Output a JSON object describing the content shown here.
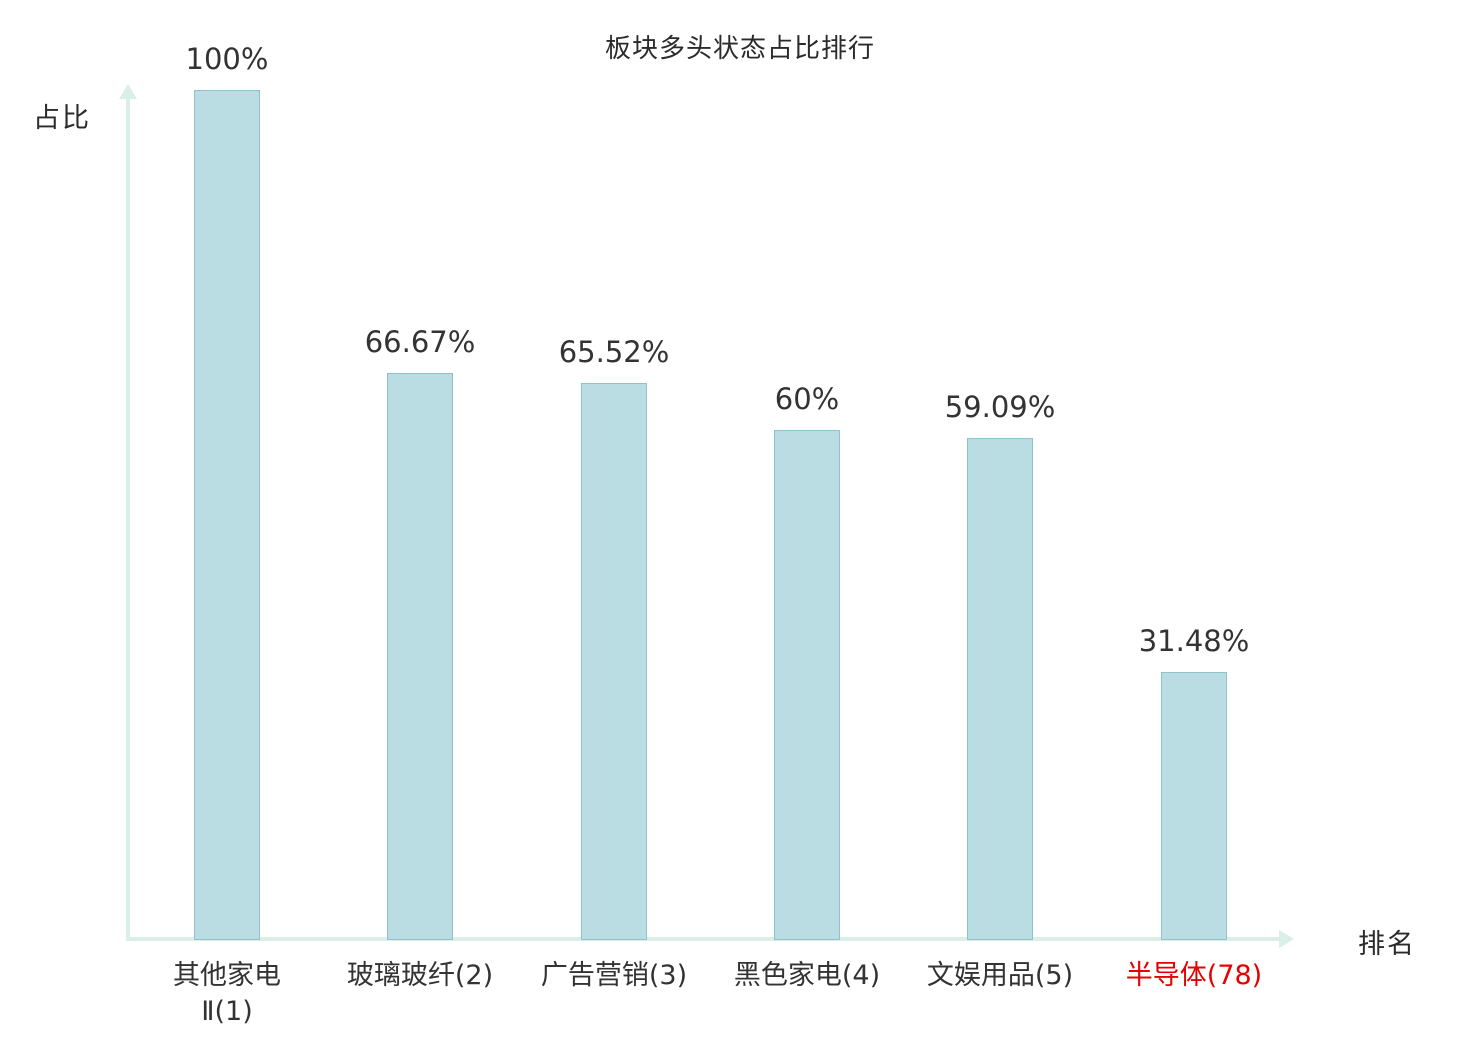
{
  "chart_data": {
    "type": "bar",
    "title": "板块多头状态占比排行",
    "xlabel": "排名",
    "ylabel": "占比",
    "categories": [
      "其他家电\nⅡ(1)",
      "玻璃玻纤(2)",
      "广告营销(3)",
      "黑色家电(4)",
      "文娱用品(5)",
      "半导体(78)"
    ],
    "values": [
      100,
      66.67,
      65.52,
      60,
      59.09,
      31.48
    ],
    "value_labels": [
      "100%",
      "66.67%",
      "65.52%",
      "60%",
      "59.09%",
      "31.48%"
    ],
    "highlight_index": 5,
    "ylim": [
      0,
      100
    ],
    "grid": false,
    "legend": false,
    "bar_color": "#b9dde3",
    "bar_border_color": "#8ec3cc",
    "axis_color": "#d9efe8",
    "label_color": "#333333",
    "highlight_color": "#e60000"
  }
}
